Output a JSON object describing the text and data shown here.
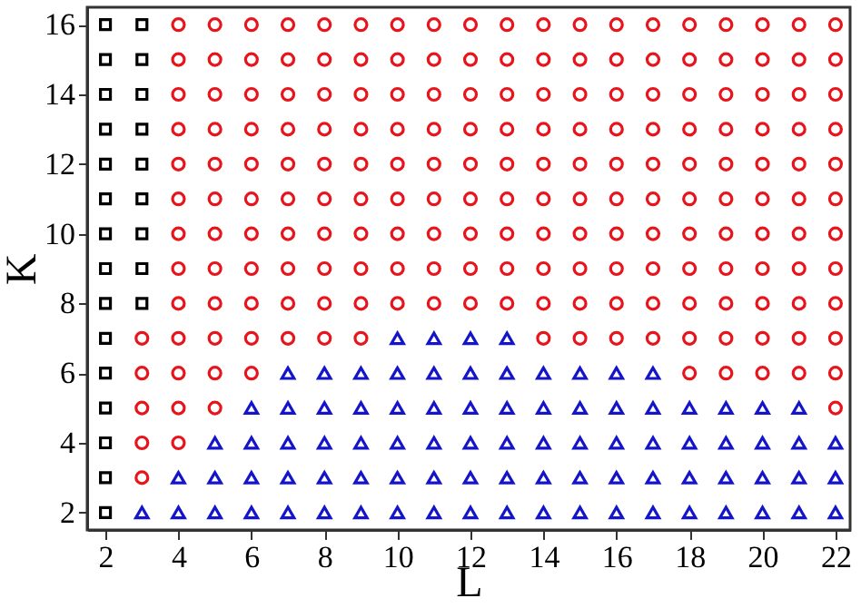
{
  "chart_data": {
    "type": "scatter",
    "xlabel": "L",
    "ylabel": "K",
    "xlim": [
      1.5,
      22.4
    ],
    "ylim": [
      1.5,
      16.5
    ],
    "xticks": [
      2,
      4,
      6,
      8,
      10,
      12,
      14,
      16,
      18,
      20,
      22
    ],
    "yticks": [
      2,
      4,
      6,
      8,
      10,
      12,
      14,
      16
    ],
    "grid": false,
    "series": [
      {
        "color": "#000000",
        "marker": "square",
        "x": [
          2,
          2,
          2,
          2,
          2,
          2,
          2,
          2,
          2,
          2,
          2,
          2,
          2,
          2,
          2,
          3,
          3,
          3,
          3,
          3,
          3,
          3,
          3,
          3
        ],
        "values": [
          2,
          3,
          4,
          5,
          6,
          7,
          8,
          9,
          10,
          11,
          12,
          13,
          14,
          15,
          16,
          8,
          9,
          10,
          11,
          12,
          13,
          14,
          15,
          16
        ]
      },
      {
        "color": "#e8141c",
        "marker": "circle",
        "x": [
          3,
          3,
          3,
          3,
          3,
          4,
          4,
          4,
          4,
          4,
          4,
          4,
          4,
          4,
          4,
          4,
          4,
          4,
          5,
          5,
          5,
          5,
          5,
          5,
          5,
          5,
          5,
          5,
          5,
          5,
          6,
          6,
          6,
          6,
          6,
          6,
          6,
          6,
          6,
          6,
          6,
          7,
          7,
          7,
          7,
          7,
          7,
          7,
          7,
          7,
          7,
          8,
          8,
          8,
          8,
          8,
          8,
          8,
          8,
          8,
          8,
          9,
          9,
          9,
          9,
          9,
          9,
          9,
          9,
          9,
          9,
          10,
          10,
          10,
          10,
          10,
          10,
          10,
          10,
          10,
          11,
          11,
          11,
          11,
          11,
          11,
          11,
          11,
          11,
          12,
          12,
          12,
          12,
          12,
          12,
          12,
          12,
          12,
          13,
          13,
          13,
          13,
          13,
          13,
          13,
          13,
          13,
          14,
          14,
          14,
          14,
          14,
          14,
          14,
          14,
          14,
          14,
          15,
          15,
          15,
          15,
          15,
          15,
          15,
          15,
          15,
          15,
          16,
          16,
          16,
          16,
          16,
          16,
          16,
          16,
          16,
          16,
          17,
          17,
          17,
          17,
          17,
          17,
          17,
          17,
          17,
          17,
          18,
          18,
          18,
          18,
          18,
          18,
          18,
          18,
          18,
          18,
          18,
          19,
          19,
          19,
          19,
          19,
          19,
          19,
          19,
          19,
          19,
          19,
          20,
          20,
          20,
          20,
          20,
          20,
          20,
          20,
          20,
          20,
          20,
          21,
          21,
          21,
          21,
          21,
          21,
          21,
          21,
          21,
          21,
          21,
          22,
          22,
          22,
          22,
          22,
          22,
          22,
          22,
          22,
          22,
          22,
          22
        ],
        "values": [
          3,
          4,
          5,
          6,
          7,
          4,
          5,
          6,
          7,
          8,
          9,
          10,
          11,
          12,
          13,
          14,
          15,
          16,
          5,
          6,
          7,
          8,
          9,
          10,
          11,
          12,
          13,
          14,
          15,
          16,
          6,
          7,
          8,
          9,
          10,
          11,
          12,
          13,
          14,
          15,
          16,
          7,
          8,
          9,
          10,
          11,
          12,
          13,
          14,
          15,
          16,
          7,
          8,
          9,
          10,
          11,
          12,
          13,
          14,
          15,
          16,
          7,
          8,
          9,
          10,
          11,
          12,
          13,
          14,
          15,
          16,
          8,
          9,
          10,
          11,
          12,
          13,
          14,
          15,
          16,
          8,
          9,
          10,
          11,
          12,
          13,
          14,
          15,
          16,
          8,
          9,
          10,
          11,
          12,
          13,
          14,
          15,
          16,
          8,
          9,
          10,
          11,
          12,
          13,
          14,
          15,
          16,
          7,
          8,
          9,
          10,
          11,
          12,
          13,
          14,
          15,
          16,
          7,
          8,
          9,
          10,
          11,
          12,
          13,
          14,
          15,
          16,
          7,
          8,
          9,
          10,
          11,
          12,
          13,
          14,
          15,
          16,
          7,
          8,
          9,
          10,
          11,
          12,
          13,
          14,
          15,
          16,
          6,
          7,
          8,
          9,
          10,
          11,
          12,
          13,
          14,
          15,
          16,
          6,
          7,
          8,
          9,
          10,
          11,
          12,
          13,
          14,
          15,
          16,
          6,
          7,
          8,
          9,
          10,
          11,
          12,
          13,
          14,
          15,
          16,
          6,
          7,
          8,
          9,
          10,
          11,
          12,
          13,
          14,
          15,
          16,
          5,
          6,
          7,
          8,
          9,
          10,
          11,
          12,
          13,
          14,
          15,
          16
        ]
      },
      {
        "color": "#1414c8",
        "marker": "triangle",
        "x": [
          3,
          4,
          4,
          5,
          5,
          5,
          6,
          6,
          6,
          6,
          7,
          7,
          7,
          7,
          7,
          8,
          8,
          8,
          8,
          8,
          9,
          9,
          9,
          9,
          9,
          10,
          10,
          10,
          10,
          10,
          10,
          11,
          11,
          11,
          11,
          11,
          11,
          12,
          12,
          12,
          12,
          12,
          12,
          13,
          13,
          13,
          13,
          13,
          13,
          14,
          14,
          14,
          14,
          14,
          15,
          15,
          15,
          15,
          15,
          16,
          16,
          16,
          16,
          16,
          17,
          17,
          17,
          17,
          17,
          18,
          18,
          18,
          18,
          19,
          19,
          19,
          19,
          20,
          20,
          20,
          20,
          21,
          21,
          21,
          21,
          22,
          22,
          22
        ],
        "values": [
          2,
          2,
          3,
          2,
          3,
          4,
          2,
          3,
          4,
          5,
          2,
          3,
          4,
          5,
          6,
          2,
          3,
          4,
          5,
          6,
          2,
          3,
          4,
          5,
          6,
          2,
          3,
          4,
          5,
          6,
          7,
          2,
          3,
          4,
          5,
          6,
          7,
          2,
          3,
          4,
          5,
          6,
          7,
          2,
          3,
          4,
          5,
          6,
          7,
          2,
          3,
          4,
          5,
          6,
          2,
          3,
          4,
          5,
          6,
          2,
          3,
          4,
          5,
          6,
          2,
          3,
          4,
          5,
          6,
          2,
          3,
          4,
          5,
          2,
          3,
          4,
          5,
          2,
          3,
          4,
          5,
          2,
          3,
          4,
          5,
          2,
          3,
          4
        ]
      }
    ]
  }
}
